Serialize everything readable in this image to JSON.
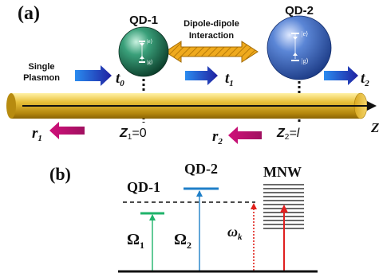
{
  "panel_a": {
    "label": "(a)",
    "qd1_label": "QD-1",
    "qd2_label": "QD-2",
    "interaction_line1": "Dipole-dipole",
    "interaction_line2": "Interaction",
    "single_line1": "Single",
    "single_line2": "Plasmon",
    "t0": "t",
    "t0_sub": "0",
    "t1": "t",
    "t1_sub": "1",
    "t2": "t",
    "t2_sub": "2",
    "r1": "r",
    "r1_sub": "1",
    "r2": "r",
    "r2_sub": "2",
    "z1_label": "Z",
    "z1_sub": "1",
    "z1_value": "=0",
    "z2_label": "Z",
    "z2_sub": "2",
    "z2_value": "=l",
    "axis_label": "Z",
    "qd_state_excited": "|e⟩",
    "qd_state_ground": "|g⟩"
  },
  "panel_b": {
    "label": "(b)",
    "qd1_label": "QD-1",
    "qd2_label": "QD-2",
    "mnw_label": "MNW",
    "omega1": "Ω",
    "omega1_sub": "1",
    "omega2": "Ω",
    "omega2_sub": "2",
    "omegak": "ω",
    "omegak_sub": "k"
  },
  "colors": {
    "wire": "#e0b21c",
    "qd1": "#1f7a55",
    "qd2": "#2d5bb5",
    "forward_arrow": "#2f2fb8",
    "backward_arrow": "#c0106a",
    "interaction_arrow": "#e8a312",
    "qd1_level": "#1fb36a",
    "qd2_level": "#1f7fc8",
    "omegak_arrow": "#e0201a",
    "mnw_arrow": "#e02020"
  }
}
